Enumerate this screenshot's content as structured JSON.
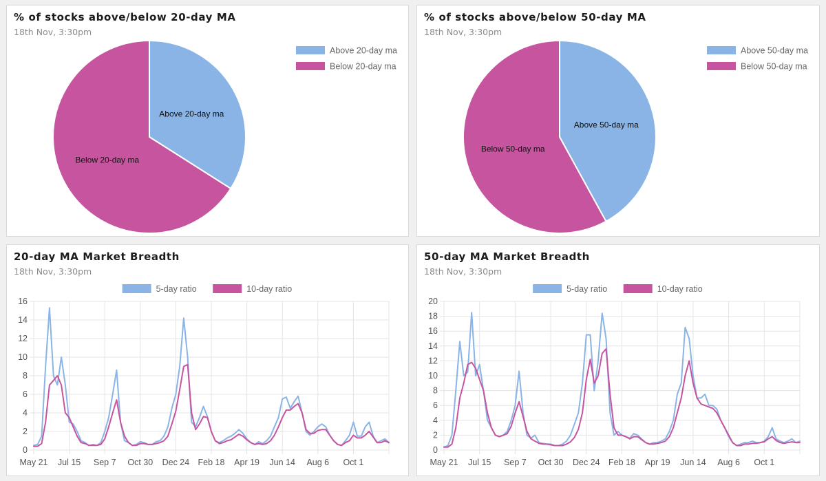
{
  "charts": [
    {
      "title": "% of stocks above/below 20-day MA",
      "subtitle": "18th Nov, 3:30pm",
      "chart_data": {
        "type": "pie",
        "labels": [
          "Above 20-day ma",
          "Below 20-day ma"
        ],
        "values": [
          34,
          66
        ],
        "colors": [
          "#8ab4e6",
          "#c6549f"
        ],
        "legend": "top-right"
      }
    },
    {
      "title": "% of stocks above/below 50-day MA",
      "subtitle": "18th Nov, 3:30pm",
      "chart_data": {
        "type": "pie",
        "labels": [
          "Above 50-day ma",
          "Below 50-day ma"
        ],
        "values": [
          42,
          58
        ],
        "colors": [
          "#8ab4e6",
          "#c6549f"
        ],
        "legend": "top-right"
      }
    },
    {
      "title": "20-day MA Market Breadth",
      "subtitle": "18th Nov, 3:30pm",
      "chart_data": {
        "type": "line",
        "ylim": [
          0,
          16
        ],
        "yticks": [
          0,
          2,
          4,
          6,
          8,
          10,
          12,
          14,
          16
        ],
        "x_labels": [
          "May 21",
          "Jul 15",
          "Sep 7",
          "Oct 30",
          "Dec 24",
          "Feb 18",
          "Apr 19",
          "Jun 14",
          "Aug 6",
          "Oct 1"
        ],
        "label_index": [
          0,
          9,
          18,
          27,
          36,
          45,
          54,
          63,
          72,
          81
        ],
        "legend": "top-center",
        "series": [
          {
            "name": "5-day ratio",
            "color": "#8ab4e6",
            "values": [
              0.5,
              0.6,
              1.5,
              9,
              15.3,
              8,
              7,
              10,
              7,
              3,
              2.8,
              2,
              1,
              0.8,
              0.5,
              0.6,
              0.5,
              0.8,
              2,
              3.5,
              6,
              8.6,
              3,
              1,
              0.8,
              0.5,
              0.6,
              0.9,
              0.8,
              0.6,
              0.6,
              0.9,
              1,
              1.5,
              2.5,
              4.5,
              6,
              9,
              14.2,
              10,
              3,
              2.5,
              3.5,
              4.7,
              3.6,
              2,
              1,
              0.8,
              1,
              1.3,
              1.5,
              1.8,
              2.2,
              1.8,
              1.2,
              0.8,
              0.6,
              0.9,
              0.7,
              1,
              1.5,
              2.5,
              3.5,
              5.5,
              5.7,
              4.5,
              5.2,
              5.8,
              4,
              2,
              1.6,
              2,
              2.5,
              2.8,
              2.5,
              1.6,
              1,
              0.6,
              0.5,
              1,
              1.6,
              3,
              1.5,
              1.5,
              2.5,
              3,
              1.5,
              0.8,
              1,
              1.2,
              0.8
            ]
          },
          {
            "name": "10-day ratio",
            "color": "#c6549f",
            "values": [
              0.4,
              0.4,
              0.7,
              3,
              7,
              7.5,
              8,
              7,
              4,
              3.5,
              2.5,
              1.5,
              0.8,
              0.7,
              0.5,
              0.5,
              0.5,
              0.6,
              1.2,
              2.5,
              4,
              5.4,
              3,
              1.5,
              0.8,
              0.5,
              0.5,
              0.7,
              0.7,
              0.6,
              0.6,
              0.7,
              0.8,
              1,
              1.5,
              2.8,
              4.2,
              6.5,
              9,
              9.2,
              4,
              2.2,
              2.8,
              3.6,
              3.5,
              2,
              1,
              0.7,
              0.8,
              1,
              1.1,
              1.4,
              1.7,
              1.5,
              1.1,
              0.8,
              0.6,
              0.7,
              0.6,
              0.7,
              1,
              1.6,
              2.5,
              3.5,
              4.3,
              4.3,
              4.7,
              5,
              4,
              2.2,
              1.8,
              1.8,
              2.1,
              2.2,
              2.2,
              1.6,
              1,
              0.6,
              0.5,
              0.8,
              1,
              1.6,
              1.3,
              1.3,
              1.6,
              2,
              1.4,
              0.8,
              0.8,
              1,
              0.8
            ]
          }
        ]
      }
    },
    {
      "title": "50-day MA Market Breadth",
      "subtitle": "18th Nov, 3:30pm",
      "chart_data": {
        "type": "line",
        "ylim": [
          0,
          20
        ],
        "yticks": [
          0,
          2,
          4,
          6,
          8,
          10,
          12,
          14,
          16,
          18,
          20
        ],
        "x_labels": [
          "May 21",
          "Jul 15",
          "Sep 7",
          "Oct 30",
          "Dec 24",
          "Feb 18",
          "Apr 19",
          "Jun 14",
          "Aug 6",
          "Oct 1"
        ],
        "label_index": [
          0,
          9,
          18,
          27,
          36,
          45,
          54,
          63,
          72,
          81
        ],
        "legend": "top-center",
        "series": [
          {
            "name": "5-day ratio",
            "color": "#8ab4e6",
            "values": [
              0.4,
              0.6,
              2,
              8,
              14.6,
              10,
              10.5,
              18.5,
              10,
              11.5,
              8,
              4,
              3,
              2,
              1.8,
              2,
              2.5,
              4,
              6,
              10.6,
              5,
              2,
              1.6,
              2,
              1,
              0.9,
              0.8,
              0.8,
              0.6,
              0.6,
              0.8,
              1.2,
              2,
              3.5,
              5,
              9,
              15.5,
              15.5,
              8,
              12,
              18.4,
              15,
              5,
              2,
              2.5,
              2,
              1.8,
              1.6,
              2.2,
              2,
              1.5,
              1,
              0.8,
              1,
              1,
              1.2,
              1.5,
              2.5,
              4,
              7.5,
              9,
              16.5,
              15,
              10,
              7,
              7,
              7.5,
              6,
              6,
              5.5,
              4,
              3,
              1.8,
              1,
              0.6,
              0.8,
              1,
              1,
              1.2,
              1,
              1,
              1.2,
              1.8,
              3,
              1.5,
              1.2,
              1,
              1.2,
              1.5,
              1,
              1.2
            ]
          },
          {
            "name": "10-day ratio",
            "color": "#c6549f",
            "values": [
              0.4,
              0.4,
              0.8,
              3,
              7,
              9,
              11.5,
              11.8,
              11,
              9.5,
              8,
              5,
              3,
              2,
              1.8,
              2,
              2.2,
              3.2,
              5,
              6.5,
              4.5,
              2.5,
              1.5,
              1.2,
              0.9,
              0.8,
              0.8,
              0.7,
              0.6,
              0.6,
              0.6,
              0.8,
              1.1,
              1.7,
              2.8,
              5,
              9.5,
              12.2,
              9,
              10,
              13,
              13.6,
              7.5,
              3,
              2,
              2,
              1.8,
              1.5,
              1.8,
              1.8,
              1.4,
              1,
              0.8,
              0.8,
              0.9,
              1,
              1.2,
              1.8,
              3,
              5,
              7,
              10,
              12,
              9,
              7,
              6.2,
              6,
              5.8,
              5.6,
              5,
              4,
              3,
              2,
              1,
              0.6,
              0.6,
              0.8,
              0.8,
              0.9,
              0.9,
              1,
              1.1,
              1.5,
              1.8,
              1.3,
              1,
              0.9,
              1,
              1.1,
              1,
              1
            ]
          }
        ]
      }
    }
  ]
}
